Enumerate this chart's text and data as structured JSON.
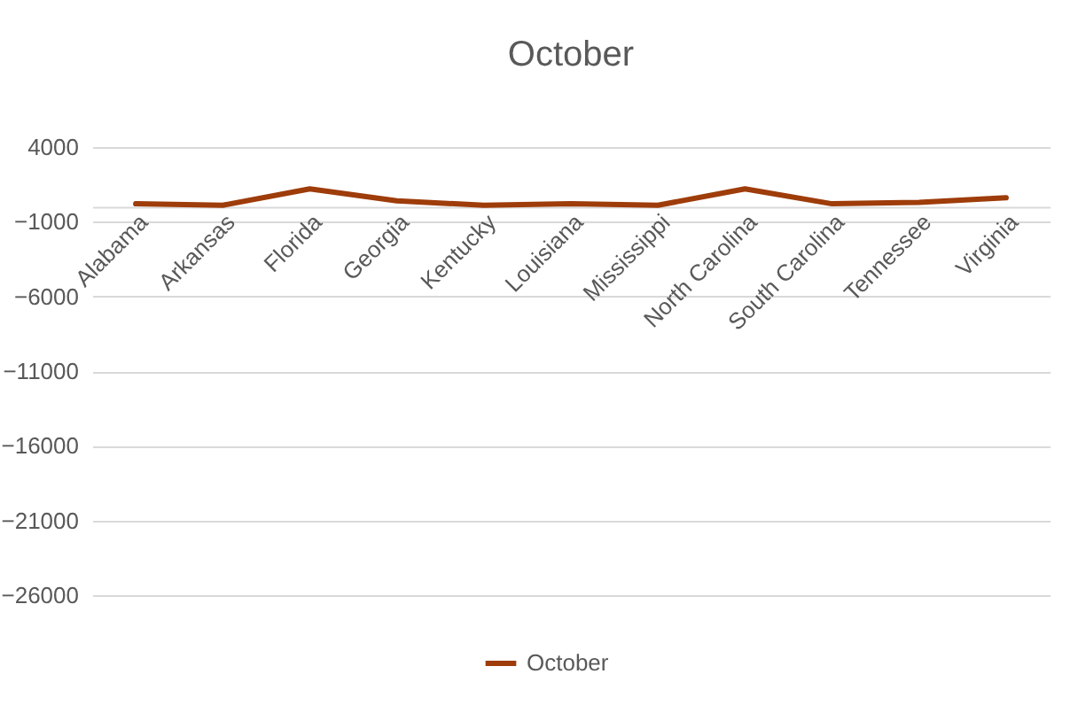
{
  "chart_data": {
    "type": "line",
    "title": "October",
    "categories": [
      "Alabama",
      "Arkansas",
      "Florida",
      "Georgia",
      "Kentucky",
      "Louisiana",
      "Mississippi",
      "North Carolina",
      "South Carolina",
      "Tennessee",
      "Virginia"
    ],
    "series": [
      {
        "name": "October",
        "color": "#9e3c0a",
        "values": [
          200,
          100,
          1200,
          400,
          100,
          200,
          100,
          1200,
          200,
          300,
          600
        ]
      }
    ],
    "ylim": [
      -26000,
      4000
    ],
    "yticks": [
      4000,
      -1000,
      -6000,
      -11000,
      -16000,
      -21000,
      -26000
    ],
    "grid": "y",
    "legend": "bottom",
    "marker": "none",
    "line_style": "solid"
  }
}
